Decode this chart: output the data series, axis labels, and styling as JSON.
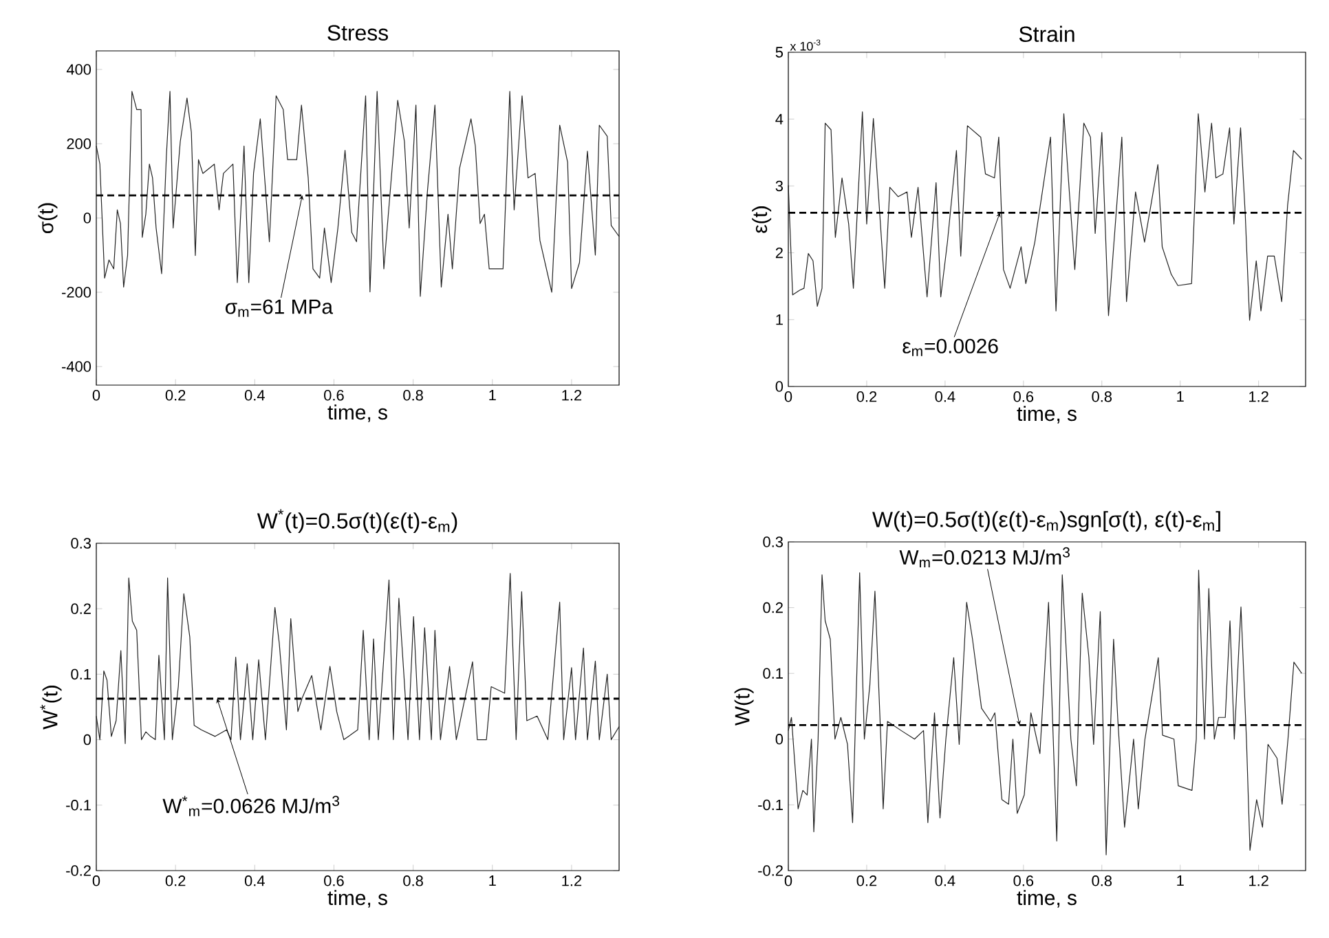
{
  "chart_data": [
    {
      "type": "line",
      "title": "Stress",
      "xlabel": "time, s",
      "ylabel": "σ(t)",
      "xlim": [
        0,
        1.32
      ],
      "ylim": [
        -450,
        450
      ],
      "xticks": [
        0,
        0.2,
        0.4,
        0.6,
        0.8,
        1,
        1.2
      ],
      "yticks": [
        -400,
        -200,
        0,
        200,
        400
      ],
      "series": [
        {
          "color": "#222222",
          "x": [
            0,
            0.009,
            0.021,
            0.032,
            0.044,
            0.053,
            0.061,
            0.069,
            0.079,
            0.09,
            0.102,
            0.113,
            0.116,
            0.125,
            0.134,
            0.142,
            0.151,
            0.165,
            0.177,
            0.186,
            0.194,
            0.212,
            0.229,
            0.24,
            0.25,
            0.258,
            0.269,
            0.298,
            0.31,
            0.321,
            0.345,
            0.356,
            0.373,
            0.385,
            0.397,
            0.414,
            0.437,
            0.454,
            0.472,
            0.483,
            0.506,
            0.518,
            0.535,
            0.547,
            0.564,
            0.576,
            0.593,
            0.61,
            0.628,
            0.645,
            0.657,
            0.68,
            0.691,
            0.709,
            0.726,
            0.761,
            0.778,
            0.79,
            0.807,
            0.818,
            0.836,
            0.855,
            0.871,
            0.888,
            0.899,
            0.917,
            0.946,
            0.957,
            0.969,
            0.98,
            0.992,
            1.027,
            1.044,
            1.055,
            1.075,
            1.09,
            1.108,
            1.12,
            1.15,
            1.17,
            1.19,
            1.2,
            1.22,
            1.24,
            1.26,
            1.27,
            1.29,
            1.3,
            1.32
          ],
          "values": [
            194,
            145,
            -162,
            -113,
            -137,
            22,
            -15,
            -186,
            -101,
            341,
            292,
            292,
            -52,
            10,
            145,
            108,
            -27,
            -150,
            169,
            341,
            -27,
            206,
            323,
            231,
            -101,
            157,
            120,
            145,
            22,
            120,
            145,
            -174,
            194,
            -174,
            120,
            267,
            -64,
            329,
            292,
            157,
            157,
            304,
            108,
            -137,
            -162,
            -27,
            -174,
            -27,
            182,
            -39,
            -64,
            329,
            -199,
            341,
            -137,
            317,
            206,
            -27,
            304,
            -211,
            71,
            304,
            -186,
            10,
            -137,
            133,
            267,
            194,
            -15,
            10,
            -137,
            -137,
            341,
            22,
            329,
            108,
            120,
            -60,
            -200,
            250,
            150,
            -190,
            -120,
            180,
            -100,
            250,
            220,
            -20,
            -50
          ]
        }
      ],
      "ref_lines": [
        {
          "axis": "y",
          "value": 61,
          "color": "#000000",
          "line_style": "dashed"
        }
      ],
      "annotations": [
        {
          "text": "σ$_{m}$=61 MPa",
          "x": 0.52,
          "y": 61
        }
      ]
    },
    {
      "type": "line",
      "title": "Strain",
      "xlabel": "time, s",
      "ylabel": "ε(t)",
      "xlim": [
        0,
        1.32
      ],
      "ylim": [
        0,
        5
      ],
      "xticks": [
        0,
        0.2,
        0.4,
        0.6,
        0.8,
        1,
        1.2
      ],
      "yticks": [
        0,
        1,
        2,
        3,
        4,
        5
      ],
      "series": [
        {
          "color": "#222222",
          "x": [
            0,
            0.011,
            0.029,
            0.04,
            0.051,
            0.063,
            0.074,
            0.086,
            0.094,
            0.109,
            0.12,
            0.137,
            0.154,
            0.166,
            0.189,
            0.2,
            0.217,
            0.246,
            0.259,
            0.28,
            0.303,
            0.314,
            0.331,
            0.354,
            0.377,
            0.389,
            0.406,
            0.429,
            0.44,
            0.457,
            0.491,
            0.503,
            0.526,
            0.537,
            0.549,
            0.566,
            0.594,
            0.606,
            0.629,
            0.669,
            0.683,
            0.703,
            0.731,
            0.754,
            0.771,
            0.783,
            0.8,
            0.817,
            0.851,
            0.863,
            0.886,
            0.909,
            0.943,
            0.954,
            0.977,
            0.994,
            1.029,
            1.046,
            1.063,
            1.08,
            1.091,
            1.109,
            1.126,
            1.137,
            1.154,
            1.166,
            1.177,
            1.194,
            1.206,
            1.223,
            1.24,
            1.259,
            1.274,
            1.289,
            1.31
          ],
          "values": [
            3.01,
            1.37,
            1.44,
            1.47,
            1.99,
            1.88,
            1.2,
            1.47,
            3.94,
            3.84,
            2.23,
            3.12,
            2.43,
            1.47,
            4.11,
            2.43,
            4.01,
            1.47,
            2.98,
            2.84,
            2.91,
            2.23,
            2.98,
            1.34,
            3.05,
            1.34,
            2.16,
            3.53,
            1.95,
            3.9,
            3.73,
            3.18,
            3.12,
            3.73,
            1.75,
            1.47,
            2.09,
            1.54,
            2.16,
            3.73,
            1.13,
            4.08,
            1.75,
            3.94,
            3.73,
            2.29,
            3.8,
            1.06,
            3.73,
            1.27,
            2.91,
            2.16,
            3.32,
            2.09,
            1.68,
            1.51,
            1.54,
            4.08,
            2.91,
            3.94,
            3.12,
            3.18,
            3.87,
            2.43,
            3.87,
            2.57,
            0.99,
            1.88,
            1.13,
            1.95,
            1.95,
            1.27,
            2.71,
            3.53,
            3.4
          ]
        }
      ],
      "ref_lines": [
        {
          "axis": "y",
          "value": 2.6,
          "color": "#000000",
          "line_style": "dashed"
        }
      ],
      "annotations": [
        {
          "text": "ε$_{m}$=0.0026",
          "x": 0.54,
          "y": 2.6
        },
        "x 10$^{-3}$"
      ]
    },
    {
      "type": "line",
      "title": "W$^{*}$(t)=0.5σ(t)(ε(t)-ε$_{m}$)",
      "xlabel": "time, s",
      "ylabel": "W$^{*}$(t)",
      "xlim": [
        0,
        1.32
      ],
      "ylim": [
        -0.2,
        0.3
      ],
      "xticks": [
        0,
        0.2,
        0.4,
        0.6,
        0.8,
        1,
        1.2
      ],
      "yticks": [
        -0.2,
        -0.1,
        0,
        0.1,
        0.2,
        0.3
      ],
      "series": [
        {
          "color": "#222222",
          "x": [
            0,
            0.009,
            0.019,
            0.027,
            0.038,
            0.05,
            0.062,
            0.073,
            0.082,
            0.091,
            0.102,
            0.114,
            0.125,
            0.137,
            0.149,
            0.158,
            0.172,
            0.18,
            0.192,
            0.207,
            0.221,
            0.236,
            0.247,
            0.265,
            0.3,
            0.329,
            0.34,
            0.352,
            0.364,
            0.381,
            0.395,
            0.41,
            0.427,
            0.451,
            0.462,
            0.48,
            0.491,
            0.509,
            0.52,
            0.544,
            0.567,
            0.59,
            0.607,
            0.625,
            0.66,
            0.674,
            0.689,
            0.7,
            0.712,
            0.739,
            0.75,
            0.764,
            0.776,
            0.787,
            0.801,
            0.816,
            0.829,
            0.846,
            0.855,
            0.869,
            0.892,
            0.909,
            0.95,
            0.962,
            0.985,
            0.997,
            1.031,
            1.045,
            1.06,
            1.074,
            1.087,
            1.113,
            1.14,
            1.17,
            1.18,
            1.2,
            1.21,
            1.23,
            1.24,
            1.26,
            1.27,
            1.29,
            1.3,
            1.32
          ],
          "values": [
            0.036,
            0,
            0.105,
            0.091,
            0.005,
            0.029,
            0.136,
            -0.006,
            0.247,
            0.181,
            0.167,
            0,
            0.012,
            0.005,
            0,
            0.129,
            0,
            0.247,
            0,
            0.081,
            0.223,
            0.157,
            0.022,
            0.015,
            0.005,
            0.015,
            0,
            0.126,
            0,
            0.116,
            0,
            0.122,
            0,
            0.202,
            0.147,
            0.015,
            0.185,
            0.043,
            0.064,
            0.098,
            0.015,
            0.112,
            0.043,
            0,
            0.015,
            0.167,
            0,
            0.154,
            0,
            0.244,
            0,
            0.216,
            0.105,
            0,
            0.188,
            0,
            0.171,
            0,
            0.167,
            0,
            0.112,
            0,
            0.119,
            0,
            0,
            0.081,
            0.071,
            0.254,
            0,
            0.226,
            0.029,
            0.036,
            0,
            0.21,
            0,
            0.11,
            0,
            0.14,
            0,
            0.12,
            0,
            0.1,
            0,
            0.02
          ]
        }
      ],
      "ref_lines": [
        {
          "axis": "y",
          "value": 0.0626,
          "color": "#000000",
          "line_style": "dashed"
        }
      ],
      "annotations": [
        {
          "text": "W$^{*}$$_{m}$=0.0626 MJ/m$^{3}$",
          "x": 0.305,
          "y": 0.0626
        }
      ]
    },
    {
      "type": "line",
      "title": "W(t)=0.5σ(t)(ε(t)-ε$_{m}$)sgn[σ(t), ε(t)-ε$_{m}$]",
      "xlabel": "time, s",
      "ylabel": "W(t)",
      "xlim": [
        0,
        1.32
      ],
      "ylim": [
        -0.2,
        0.3
      ],
      "xticks": [
        0,
        0.2,
        0.4,
        0.6,
        0.8,
        1,
        1.2
      ],
      "yticks": [
        -0.2,
        -0.1,
        0,
        0.1,
        0.2,
        0.3
      ],
      "series": [
        {
          "color": "#222222",
          "x": [
            0,
            0.008,
            0.019,
            0.025,
            0.037,
            0.048,
            0.059,
            0.065,
            0.076,
            0.086,
            0.094,
            0.107,
            0.119,
            0.134,
            0.151,
            0.164,
            0.182,
            0.194,
            0.208,
            0.221,
            0.236,
            0.242,
            0.253,
            0.288,
            0.322,
            0.345,
            0.356,
            0.373,
            0.387,
            0.402,
            0.422,
            0.436,
            0.455,
            0.47,
            0.493,
            0.516,
            0.527,
            0.545,
            0.562,
            0.573,
            0.584,
            0.602,
            0.619,
            0.642,
            0.664,
            0.676,
            0.685,
            0.699,
            0.721,
            0.735,
            0.75,
            0.767,
            0.779,
            0.796,
            0.811,
            0.83,
            0.841,
            0.858,
            0.881,
            0.893,
            0.91,
            0.944,
            0.955,
            0.984,
            0.995,
            1.03,
            1.041,
            1.047,
            1.062,
            1.073,
            1.087,
            1.098,
            1.115,
            1.127,
            1.138,
            1.155,
            1.169,
            1.178,
            1.195,
            1.21,
            1.224,
            1.247,
            1.26,
            1.275,
            1.29,
            1.31
          ],
          "values": [
            0.013,
            0.033,
            -0.057,
            -0.106,
            -0.078,
            -0.085,
            0,
            -0.141,
            0,
            0.25,
            0.18,
            0.152,
            0,
            0.033,
            -0.008,
            -0.127,
            0.253,
            0,
            0.082,
            0.225,
            0,
            -0.106,
            0.027,
            0.013,
            0,
            0.013,
            -0.127,
            0.04,
            -0.12,
            0,
            0.124,
            -0.008,
            0.208,
            0.152,
            0.047,
            0.027,
            0.04,
            -0.092,
            -0.099,
            0,
            -0.113,
            -0.085,
            0.04,
            -0.022,
            0.208,
            0,
            -0.155,
            0.25,
            0,
            -0.071,
            0.222,
            0.124,
            -0.008,
            0.194,
            -0.176,
            0.152,
            0.027,
            -0.134,
            0,
            -0.106,
            0,
            0.124,
            0.006,
            0,
            -0.071,
            -0.078,
            0,
            0.257,
            0,
            0.229,
            0,
            0.033,
            0.033,
            0.18,
            0,
            0.201,
            0,
            -0.169,
            -0.092,
            -0.134,
            -0.008,
            -0.029,
            -0.099,
            0,
            0.117,
            0.1
          ]
        }
      ],
      "ref_lines": [
        {
          "axis": "y",
          "value": 0.0213,
          "color": "#000000",
          "line_style": "dashed"
        }
      ],
      "annotations": [
        {
          "text": "W$_{m}$=0.0213 MJ/m$^{3}$",
          "x": 0.59,
          "y": 0.0213
        }
      ]
    }
  ]
}
